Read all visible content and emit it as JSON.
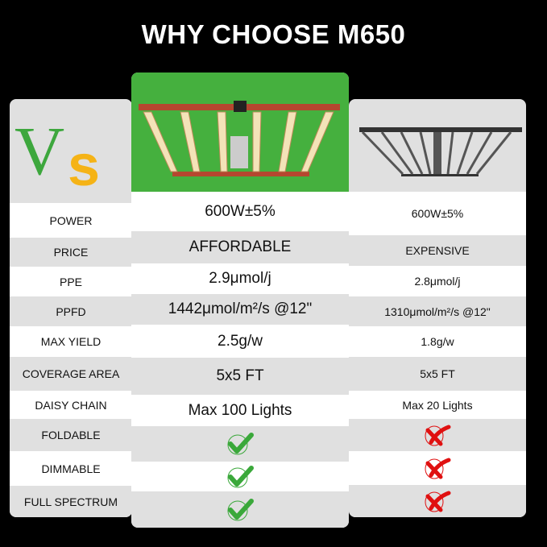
{
  "title": "WHY CHOOSE M650",
  "logo": {
    "text": "Vs",
    "colors": {
      "v": "#3da73d",
      "s": "#f5b316"
    }
  },
  "colors": {
    "highlight": "#45b03e",
    "check": "#3aa83a",
    "cross": "#e01010"
  },
  "features": [
    "POWER",
    "PRICE",
    "PPE",
    "PPFD",
    "MAX YIELD",
    "COVERAGE AREA",
    "DAISY CHAIN",
    "FOLDABLE",
    "DIMMABLE",
    "FULL SPECTRUM"
  ],
  "m650": [
    "600W±5%",
    "AFFORDABLE",
    "2.9μmol/j",
    "1442μmol/m²/s @12\"",
    "2.5g/w",
    "5x5 FT",
    "Max 100 Lights",
    "check-icon",
    "check-icon",
    "check-icon"
  ],
  "competitor": [
    "600W±5%",
    "EXPENSIVE",
    "2.8μmol/j",
    "1310μmol/m²/s @12\"",
    "1.8g/w",
    "5x5 FT",
    "Max 20 Lights",
    "cross-icon",
    "cross-icon",
    "cross-icon"
  ]
}
